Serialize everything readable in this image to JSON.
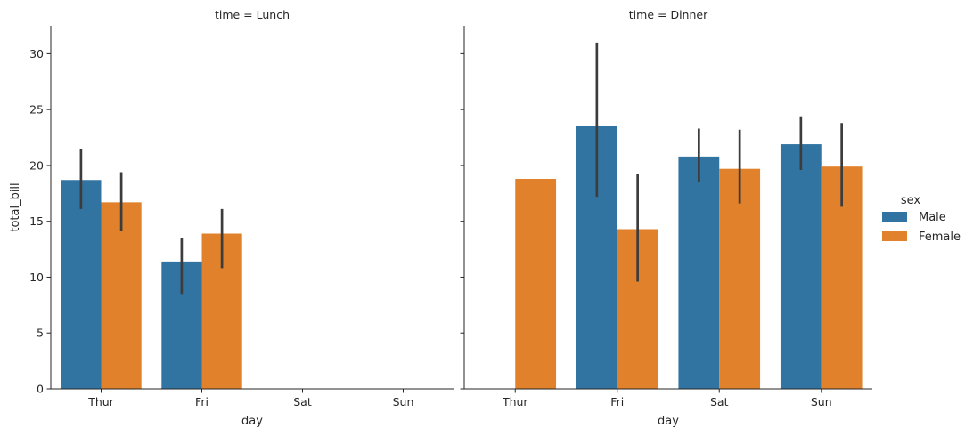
{
  "chart_data": {
    "type": "bar",
    "ylabel": "total_bill",
    "xlabel": "day",
    "ylim": [
      0,
      32.5
    ],
    "yticks": [
      0,
      5,
      10,
      15,
      20,
      25,
      30
    ],
    "ytick_labels": [
      "0",
      "5",
      "10",
      "15",
      "20",
      "25",
      "30"
    ],
    "categories": [
      "Thur",
      "Fri",
      "Sat",
      "Sun"
    ],
    "grid": false,
    "legend": {
      "title": "sex",
      "placement": "right",
      "entries": [
        {
          "label": "Male",
          "color": "#3274a1"
        },
        {
          "label": "Female",
          "color": "#e1812c"
        }
      ]
    },
    "error_bar_color": "#3c3c3c",
    "panels": [
      {
        "title": "time = Lunch",
        "series": [
          {
            "name": "Male",
            "values": [
              18.7,
              11.4,
              null,
              null
            ],
            "ci_low": [
              16.1,
              8.5,
              null,
              null
            ],
            "ci_high": [
              21.5,
              13.5,
              null,
              null
            ]
          },
          {
            "name": "Female",
            "values": [
              16.7,
              13.9,
              null,
              null
            ],
            "ci_low": [
              14.1,
              10.8,
              null,
              null
            ],
            "ci_high": [
              19.4,
              16.1,
              null,
              null
            ]
          }
        ]
      },
      {
        "title": "time = Dinner",
        "series": [
          {
            "name": "Male",
            "values": [
              null,
              23.5,
              20.8,
              21.9
            ],
            "ci_low": [
              null,
              17.2,
              18.5,
              19.6
            ],
            "ci_high": [
              null,
              31.0,
              23.3,
              24.4
            ]
          },
          {
            "name": "Female",
            "values": [
              18.8,
              14.3,
              19.7,
              19.9
            ],
            "ci_low": [
              null,
              9.6,
              16.6,
              16.3
            ],
            "ci_high": [
              null,
              19.2,
              23.2,
              23.8
            ]
          }
        ]
      }
    ]
  }
}
